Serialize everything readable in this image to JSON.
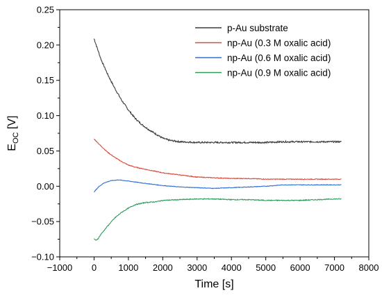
{
  "chart_data": {
    "type": "line",
    "xlabel": "Time [s]",
    "ylabel_main": "E",
    "ylabel_sub": "OC",
    "ylabel_unit": " [V]",
    "xlim": [
      -1000,
      8000
    ],
    "ylim": [
      -0.1,
      0.25
    ],
    "xticks": [
      -1000,
      0,
      1000,
      2000,
      3000,
      4000,
      5000,
      6000,
      7000,
      8000
    ],
    "xtick_labels": [
      "−1000",
      "0",
      "1000",
      "2000",
      "3000",
      "4000",
      "5000",
      "6000",
      "7000",
      "8000"
    ],
    "yticks": [
      -0.1,
      -0.05,
      0.0,
      0.05,
      0.1,
      0.15,
      0.2,
      0.25
    ],
    "ytick_labels": [
      "−0.10",
      "−0.05",
      "0.00",
      "0.05",
      "0.10",
      "0.15",
      "0.20",
      "0.25"
    ],
    "grid": false,
    "legend_position": "top-right",
    "series": [
      {
        "name": "p-Au substrate",
        "color": "#3a3a3a",
        "points": [
          [
            0,
            0.209
          ],
          [
            200,
            0.18
          ],
          [
            400,
            0.158
          ],
          [
            600,
            0.139
          ],
          [
            800,
            0.122
          ],
          [
            1000,
            0.108
          ],
          [
            1200,
            0.096
          ],
          [
            1400,
            0.087
          ],
          [
            1600,
            0.08
          ],
          [
            1800,
            0.074
          ],
          [
            2000,
            0.068
          ],
          [
            2200,
            0.065
          ],
          [
            2500,
            0.063
          ],
          [
            3000,
            0.062
          ],
          [
            3500,
            0.062
          ],
          [
            4000,
            0.062
          ],
          [
            4500,
            0.062
          ],
          [
            5000,
            0.062
          ],
          [
            5500,
            0.063
          ],
          [
            6000,
            0.063
          ],
          [
            6500,
            0.063
          ],
          [
            7000,
            0.063
          ],
          [
            7200,
            0.063
          ]
        ]
      },
      {
        "name": "np-Au (0.3 M oxalic acid)",
        "color": "#d94a3a",
        "points": [
          [
            0,
            0.067
          ],
          [
            200,
            0.057
          ],
          [
            400,
            0.048
          ],
          [
            600,
            0.041
          ],
          [
            800,
            0.035
          ],
          [
            1000,
            0.03
          ],
          [
            1200,
            0.027
          ],
          [
            1500,
            0.024
          ],
          [
            2000,
            0.019
          ],
          [
            2500,
            0.016
          ],
          [
            3000,
            0.013
          ],
          [
            3500,
            0.012
          ],
          [
            4000,
            0.011
          ],
          [
            4500,
            0.011
          ],
          [
            5000,
            0.01
          ],
          [
            6000,
            0.01
          ],
          [
            7000,
            0.01
          ],
          [
            7200,
            0.01
          ]
        ]
      },
      {
        "name": "np-Au (0.6 M oxalic acid)",
        "color": "#2f6fd6",
        "points": [
          [
            0,
            -0.008
          ],
          [
            150,
            0.0
          ],
          [
            300,
            0.005
          ],
          [
            500,
            0.008
          ],
          [
            700,
            0.009
          ],
          [
            900,
            0.008
          ],
          [
            1200,
            0.006
          ],
          [
            1500,
            0.004
          ],
          [
            2000,
            0.001
          ],
          [
            2500,
            -0.001
          ],
          [
            3000,
            -0.002
          ],
          [
            3500,
            -0.003
          ],
          [
            4000,
            -0.002
          ],
          [
            4500,
            -0.001
          ],
          [
            5000,
            0.0
          ],
          [
            5500,
            0.002
          ],
          [
            6000,
            0.002
          ],
          [
            6500,
            0.002
          ],
          [
            7000,
            0.002
          ],
          [
            7200,
            0.002
          ]
        ]
      },
      {
        "name": "np-Au (0.9 M oxalic acid)",
        "color": "#2e9a5a",
        "points": [
          [
            0,
            -0.074
          ],
          [
            50,
            -0.077
          ],
          [
            120,
            -0.074
          ],
          [
            200,
            -0.068
          ],
          [
            400,
            -0.056
          ],
          [
            600,
            -0.045
          ],
          [
            800,
            -0.037
          ],
          [
            1000,
            -0.031
          ],
          [
            1200,
            -0.026
          ],
          [
            1500,
            -0.023
          ],
          [
            1800,
            -0.022
          ],
          [
            2000,
            -0.02
          ],
          [
            2500,
            -0.019
          ],
          [
            3000,
            -0.018
          ],
          [
            3500,
            -0.018
          ],
          [
            4000,
            -0.019
          ],
          [
            4500,
            -0.019
          ],
          [
            5000,
            -0.02
          ],
          [
            5500,
            -0.02
          ],
          [
            6000,
            -0.02
          ],
          [
            6500,
            -0.019
          ],
          [
            7000,
            -0.018
          ],
          [
            7200,
            -0.018
          ]
        ]
      }
    ]
  }
}
